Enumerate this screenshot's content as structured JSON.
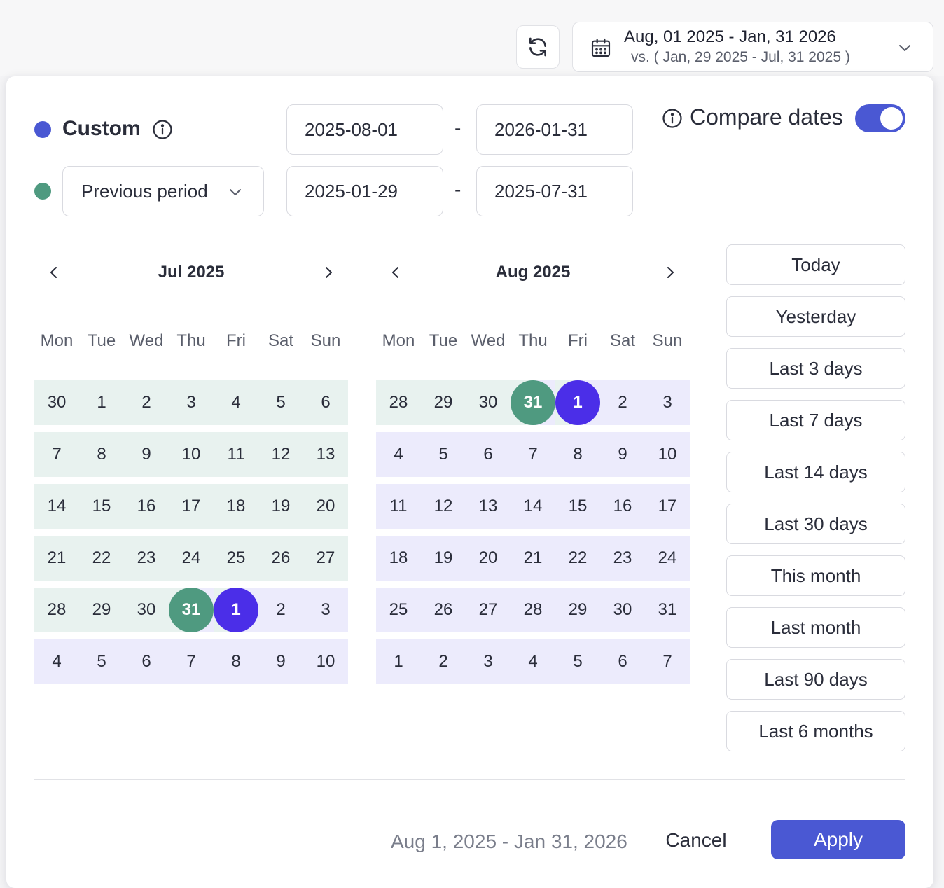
{
  "header": {
    "range_primary": "Aug, 01 2025 - Jan, 31 2026",
    "range_compare": "vs. ( Jan, 29 2025 - Jul, 31 2025 )",
    "icons": [
      "refresh-icon",
      "calendar-icon",
      "chevron-down-icon"
    ]
  },
  "picker": {
    "custom_label": "Custom",
    "primary_color": "#4a58d3",
    "compare_color": "#4f9a80",
    "compare_dropdown_label": "Previous period",
    "primary_start": "2025-08-01",
    "primary_end": "2026-01-31",
    "compare_start": "2025-01-29",
    "compare_end": "2025-07-31",
    "range_separator": "-",
    "compare_dates_label": "Compare dates",
    "compare_enabled": true
  },
  "calendars": [
    {
      "title": "Jul 2025",
      "weekdays": [
        "Mon",
        "Tue",
        "Wed",
        "Thu",
        "Fri",
        "Sat",
        "Sun"
      ],
      "weeks": [
        [
          {
            "d": "30",
            "s": "green"
          },
          {
            "d": "1",
            "s": "green"
          },
          {
            "d": "2",
            "s": "green"
          },
          {
            "d": "3",
            "s": "green"
          },
          {
            "d": "4",
            "s": "green"
          },
          {
            "d": "5",
            "s": "green"
          },
          {
            "d": "6",
            "s": "green"
          }
        ],
        [
          {
            "d": "7",
            "s": "green"
          },
          {
            "d": "8",
            "s": "green"
          },
          {
            "d": "9",
            "s": "green"
          },
          {
            "d": "10",
            "s": "green"
          },
          {
            "d": "11",
            "s": "green"
          },
          {
            "d": "12",
            "s": "green"
          },
          {
            "d": "13",
            "s": "green"
          }
        ],
        [
          {
            "d": "14",
            "s": "green"
          },
          {
            "d": "15",
            "s": "green"
          },
          {
            "d": "16",
            "s": "green"
          },
          {
            "d": "17",
            "s": "green"
          },
          {
            "d": "18",
            "s": "green"
          },
          {
            "d": "19",
            "s": "green"
          },
          {
            "d": "20",
            "s": "green"
          }
        ],
        [
          {
            "d": "21",
            "s": "green"
          },
          {
            "d": "22",
            "s": "green"
          },
          {
            "d": "23",
            "s": "green"
          },
          {
            "d": "24",
            "s": "green"
          },
          {
            "d": "25",
            "s": "green"
          },
          {
            "d": "26",
            "s": "green"
          },
          {
            "d": "27",
            "s": "green"
          }
        ],
        [
          {
            "d": "28",
            "s": "green"
          },
          {
            "d": "29",
            "s": "green"
          },
          {
            "d": "30",
            "s": "green"
          },
          {
            "d": "31",
            "s": "sel-green"
          },
          {
            "d": "1",
            "s": "sel-purple"
          },
          {
            "d": "2",
            "s": "purple"
          },
          {
            "d": "3",
            "s": "purple"
          }
        ],
        [
          {
            "d": "4",
            "s": "purple"
          },
          {
            "d": "5",
            "s": "purple"
          },
          {
            "d": "6",
            "s": "purple"
          },
          {
            "d": "7",
            "s": "purple"
          },
          {
            "d": "8",
            "s": "purple"
          },
          {
            "d": "9",
            "s": "purple"
          },
          {
            "d": "10",
            "s": "purple"
          }
        ]
      ]
    },
    {
      "title": "Aug 2025",
      "weekdays": [
        "Mon",
        "Tue",
        "Wed",
        "Thu",
        "Fri",
        "Sat",
        "Sun"
      ],
      "weeks": [
        [
          {
            "d": "28",
            "s": "green"
          },
          {
            "d": "29",
            "s": "green"
          },
          {
            "d": "30",
            "s": "green"
          },
          {
            "d": "31",
            "s": "sel-green"
          },
          {
            "d": "1",
            "s": "sel-purple"
          },
          {
            "d": "2",
            "s": "purple"
          },
          {
            "d": "3",
            "s": "purple"
          }
        ],
        [
          {
            "d": "4",
            "s": "purple"
          },
          {
            "d": "5",
            "s": "purple"
          },
          {
            "d": "6",
            "s": "purple"
          },
          {
            "d": "7",
            "s": "purple"
          },
          {
            "d": "8",
            "s": "purple"
          },
          {
            "d": "9",
            "s": "purple"
          },
          {
            "d": "10",
            "s": "purple"
          }
        ],
        [
          {
            "d": "11",
            "s": "purple"
          },
          {
            "d": "12",
            "s": "purple"
          },
          {
            "d": "13",
            "s": "purple"
          },
          {
            "d": "14",
            "s": "purple"
          },
          {
            "d": "15",
            "s": "purple"
          },
          {
            "d": "16",
            "s": "purple"
          },
          {
            "d": "17",
            "s": "purple"
          }
        ],
        [
          {
            "d": "18",
            "s": "purple"
          },
          {
            "d": "19",
            "s": "purple"
          },
          {
            "d": "20",
            "s": "purple"
          },
          {
            "d": "21",
            "s": "purple"
          },
          {
            "d": "22",
            "s": "purple"
          },
          {
            "d": "23",
            "s": "purple"
          },
          {
            "d": "24",
            "s": "purple"
          }
        ],
        [
          {
            "d": "25",
            "s": "purple"
          },
          {
            "d": "26",
            "s": "purple"
          },
          {
            "d": "27",
            "s": "purple"
          },
          {
            "d": "28",
            "s": "purple"
          },
          {
            "d": "29",
            "s": "purple"
          },
          {
            "d": "30",
            "s": "purple"
          },
          {
            "d": "31",
            "s": "purple"
          }
        ],
        [
          {
            "d": "1",
            "s": "purple"
          },
          {
            "d": "2",
            "s": "purple"
          },
          {
            "d": "3",
            "s": "purple"
          },
          {
            "d": "4",
            "s": "purple"
          },
          {
            "d": "5",
            "s": "purple"
          },
          {
            "d": "6",
            "s": "purple"
          },
          {
            "d": "7",
            "s": "purple"
          }
        ]
      ]
    }
  ],
  "presets": [
    "Today",
    "Yesterday",
    "Last 3 days",
    "Last 7 days",
    "Last 14 days",
    "Last 30 days",
    "This month",
    "Last month",
    "Last 90 days",
    "Last 6 months"
  ],
  "footer": {
    "range_text": "Aug 1, 2025 - Jan 31, 2026",
    "cancel_label": "Cancel",
    "apply_label": "Apply"
  }
}
